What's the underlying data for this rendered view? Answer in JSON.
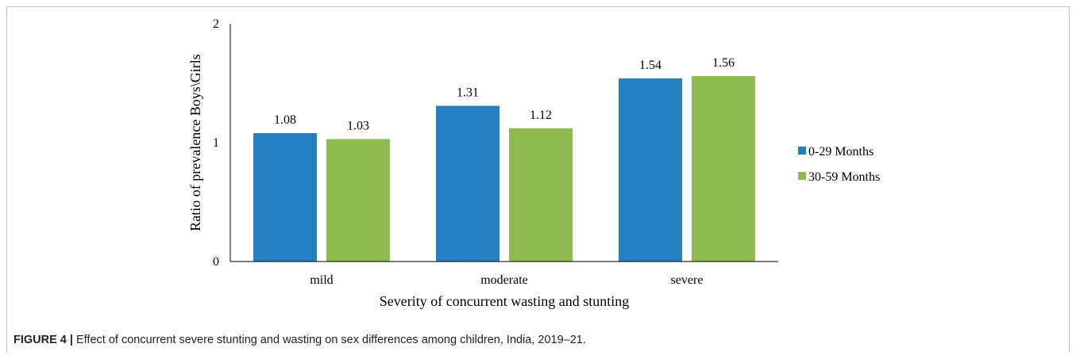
{
  "chart_data": {
    "type": "bar",
    "categories": [
      "mild",
      "moderate",
      "severe"
    ],
    "series": [
      {
        "name": "0-29 Months",
        "values": [
          1.08,
          1.31,
          1.54
        ],
        "color": "#2480c1"
      },
      {
        "name": "30-59 Months",
        "values": [
          1.03,
          1.12,
          1.56
        ],
        "color": "#8dbb4f"
      }
    ],
    "data_labels": [
      [
        "1.08",
        "1.31",
        "1.54"
      ],
      [
        "1.03",
        "1.12",
        "1.56"
      ]
    ],
    "ylim": [
      0,
      2
    ],
    "yticks": [
      0,
      1,
      2
    ],
    "xlabel": "Severity of concurrent wasting and stunting",
    "ylabel": "Ratio of prevalence Boys\\Girls",
    "legend_position": "right",
    "grid": false
  },
  "caption": {
    "label": "FIGURE 4 |",
    "text": " Effect of concurrent severe stunting and wasting on sex differences among children, India, 2019–21."
  }
}
